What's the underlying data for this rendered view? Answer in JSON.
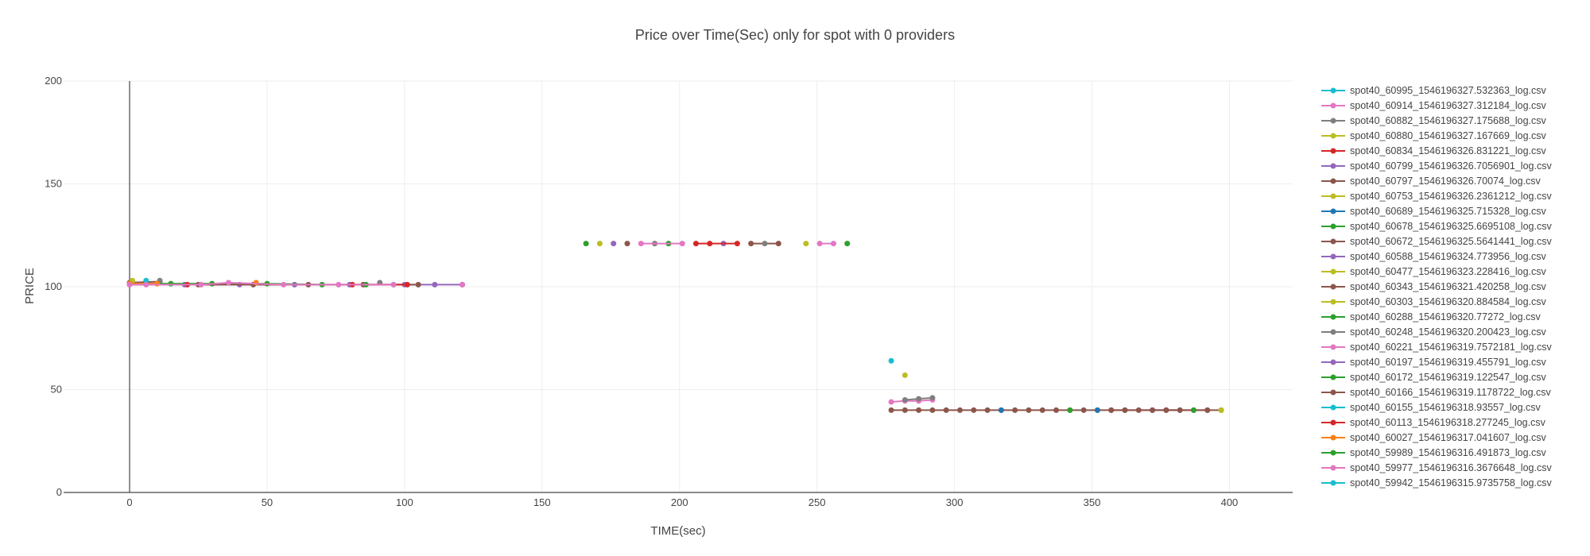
{
  "chart_data": {
    "type": "scatter",
    "title": "Price over Time(Sec) only for spot with 0 providers",
    "xlabel": "TIME(sec)",
    "ylabel": "PRICE",
    "xlim": [
      -24,
      423
    ],
    "ylim": [
      0,
      200
    ],
    "xticks": [
      0,
      50,
      100,
      150,
      200,
      250,
      300,
      350,
      400
    ],
    "yticks": [
      0,
      50,
      100,
      150,
      200
    ],
    "grid": true,
    "legend_position": "right",
    "series": [
      {
        "name": "spot40_60995_1546196327.532363_log.csv",
        "color": "#17becf",
        "x": [
          277
        ],
        "y": [
          64
        ]
      },
      {
        "name": "spot40_60914_1546196327.312184_log.csv",
        "color": "#e377c2",
        "x": [
          277,
          282,
          287,
          292
        ],
        "y": [
          44,
          44.5,
          44.5,
          45
        ]
      },
      {
        "name": "spot40_60882_1546196327.175688_log.csv",
        "color": "#7f7f7f",
        "x": [
          282,
          287,
          292
        ],
        "y": [
          45,
          45.5,
          46
        ]
      },
      {
        "name": "spot40_60880_1546196327.167669_log.csv",
        "color": "#bcbd22",
        "x": [
          282
        ],
        "y": [
          57
        ]
      },
      {
        "name": "spot40_60834_1546196326.831221_log.csv",
        "color": "#d62728",
        "x": [
          357,
          362,
          377,
          392
        ],
        "y": [
          40,
          40,
          40,
          40
        ]
      },
      {
        "name": "spot40_60799_1546196326.7056901_log.csv",
        "color": "#9467bd",
        "x": [
          372,
          382
        ],
        "y": [
          40,
          40
        ]
      },
      {
        "name": "spot40_60797_1546196326.70074_log.csv",
        "color": "#8c564b",
        "x": [
          277,
          282,
          287,
          292,
          297,
          302,
          307,
          312,
          317,
          322,
          327,
          332,
          337,
          342,
          347,
          352,
          357,
          362,
          367,
          372,
          377,
          382,
          387,
          392,
          397
        ],
        "y": [
          40,
          40,
          40,
          40,
          40,
          40,
          40,
          40,
          40,
          40,
          40,
          40,
          40,
          40,
          40,
          40,
          40,
          40,
          40,
          40,
          40,
          40,
          40,
          40,
          40
        ]
      },
      {
        "name": "spot40_60753_1546196326.2361212_log.csv",
        "color": "#bcbd22",
        "x": [
          397
        ],
        "y": [
          40
        ]
      },
      {
        "name": "spot40_60689_1546196325.715328_log.csv",
        "color": "#1f77b4",
        "x": [
          317,
          352
        ],
        "y": [
          40,
          40
        ]
      },
      {
        "name": "spot40_60678_1546196325.6695108_log.csv",
        "color": "#2ca02c",
        "x": [
          342,
          387
        ],
        "y": [
          40,
          40
        ]
      },
      {
        "name": "spot40_60672_1546196325.5641441_log.csv",
        "color": "#8c564b",
        "x": [
          0,
          11
        ],
        "y": [
          102,
          102.5
        ]
      },
      {
        "name": "spot40_60588_1546196324.773956_log.csv",
        "color": "#9467bd",
        "x": [
          176,
          216
        ],
        "y": [
          121,
          121
        ]
      },
      {
        "name": "spot40_60477_1546196323.228416_log.csv",
        "color": "#bcbd22",
        "x": [
          171,
          246
        ],
        "y": [
          121,
          121
        ]
      },
      {
        "name": "spot40_60343_1546196321.420258_log.csv",
        "color": "#8c564b",
        "x": [
          181,
          226,
          236
        ],
        "y": [
          121,
          121,
          121
        ]
      },
      {
        "name": "spot40_60303_1546196320.884584_log.csv",
        "color": "#bcbd22",
        "x": [
          1
        ],
        "y": [
          103
        ]
      },
      {
        "name": "spot40_60288_1546196320.77272_log.csv",
        "color": "#2ca02c",
        "x": [
          166,
          196,
          261
        ],
        "y": [
          121,
          121,
          121
        ]
      },
      {
        "name": "spot40_60248_1546196320.200423_log.csv",
        "color": "#7f7f7f",
        "x": [
          191,
          231,
          11,
          91
        ],
        "y": [
          121,
          121,
          103,
          102
        ]
      },
      {
        "name": "spot40_60221_1546196319.7572181_log.csv",
        "color": "#e377c2",
        "x": [
          186,
          201,
          251,
          256
        ],
        "y": [
          121,
          121,
          121,
          121
        ]
      },
      {
        "name": "spot40_60197_1546196319.455791_log.csv",
        "color": "#9467bd",
        "x": [
          0,
          20,
          40,
          60,
          80,
          100,
          111,
          121
        ],
        "y": [
          101,
          101,
          101,
          101,
          101,
          101,
          101,
          101
        ]
      },
      {
        "name": "spot40_60172_1546196319.122547_log.csv",
        "color": "#2ca02c",
        "x": [
          0,
          15,
          30,
          50,
          70
        ],
        "y": [
          101.5,
          101.5,
          101.5,
          101.5,
          101
        ]
      },
      {
        "name": "spot40_60166_1546196319.1178722_log.csv",
        "color": "#8c564b",
        "x": [
          25,
          45,
          65,
          85,
          105
        ],
        "y": [
          101,
          101,
          101,
          101,
          101
        ]
      },
      {
        "name": "spot40_60155_1546196318.93557_log.csv",
        "color": "#17becf",
        "x": [
          6,
          96
        ],
        "y": [
          103,
          101
        ]
      },
      {
        "name": "spot40_60113_1546196318.277245_log.csv",
        "color": "#d62728",
        "x": [
          21,
          81,
          101,
          206,
          211,
          221
        ],
        "y": [
          101,
          101,
          101,
          121,
          121,
          121
        ]
      },
      {
        "name": "spot40_60027_1546196317.041607_log.csv",
        "color": "#ff7f0e",
        "x": [
          0,
          10,
          46
        ],
        "y": [
          101.5,
          101.5,
          102
        ]
      },
      {
        "name": "spot40_59989_1546196316.491873_log.csv",
        "color": "#2ca02c",
        "x": [
          86
        ],
        "y": [
          101
        ]
      },
      {
        "name": "spot40_59977_1546196316.3676648_log.csv",
        "color": "#e377c2",
        "x": [
          0,
          6,
          26,
          36,
          56,
          76,
          96,
          121
        ],
        "y": [
          101,
          101,
          101,
          102,
          101,
          101,
          101,
          101
        ]
      },
      {
        "name": "spot40_59942_1546196315.9735758_log.csv",
        "color": "#17becf",
        "x": [],
        "y": []
      }
    ]
  }
}
